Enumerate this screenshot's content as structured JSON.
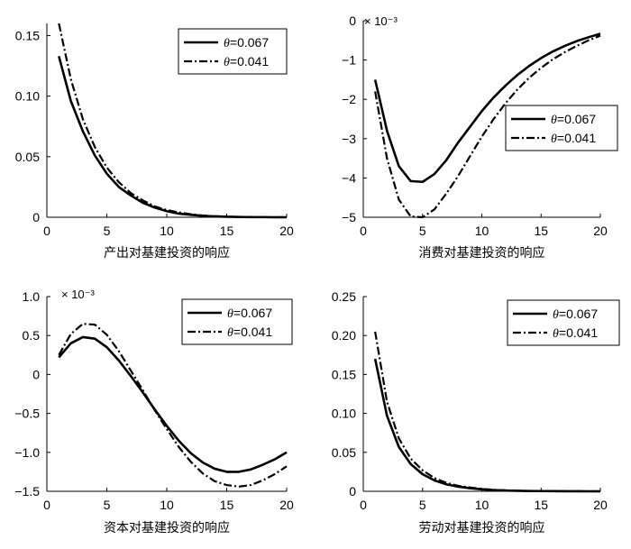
{
  "chart_data": [
    {
      "type": "line",
      "xlabel": "产出对基建投资的响应",
      "xlim": [
        0,
        20
      ],
      "ylim": [
        0,
        0.16
      ],
      "xticks": [
        "0",
        "5",
        "10",
        "15",
        "20"
      ],
      "yticks": [
        "0",
        "0.05",
        "0.10",
        "0.15"
      ],
      "ytick_values": [
        0,
        0.05,
        0.1,
        0.15
      ],
      "multiplier": "",
      "legend_position": "top-right",
      "series": [
        {
          "name": "θ=0.067",
          "style": "solid",
          "x": [
            1,
            2,
            3,
            4,
            5,
            6,
            7,
            8,
            9,
            10,
            11,
            12,
            13,
            14,
            15,
            16,
            17,
            18,
            19,
            20
          ],
          "y": [
            0.133,
            0.096,
            0.071,
            0.051,
            0.036,
            0.025,
            0.018,
            0.012,
            0.008,
            0.005,
            0.003,
            0.002,
            0.0012,
            0.0007,
            0.0004,
            0.0002,
            0.0001,
            0.0001,
            0.0,
            0.0
          ]
        },
        {
          "name": "θ=0.041",
          "style": "dashdot",
          "x": [
            1,
            2,
            3,
            4,
            5,
            6,
            7,
            8,
            9,
            10,
            11,
            12,
            13,
            14,
            15,
            16,
            17,
            18,
            19,
            20
          ],
          "y": [
            0.16,
            0.114,
            0.081,
            0.058,
            0.041,
            0.029,
            0.02,
            0.014,
            0.009,
            0.006,
            0.004,
            0.0025,
            0.0015,
            0.0009,
            0.0005,
            0.0003,
            0.0002,
            0.0001,
            0.0,
            0.0
          ]
        }
      ]
    },
    {
      "type": "line",
      "xlabel": "消费对基建投资的响应",
      "xlim": [
        0,
        20
      ],
      "ylim": [
        -5,
        0
      ],
      "xticks": [
        "0",
        "5",
        "10",
        "15",
        "20"
      ],
      "yticks": [
        "0",
        "−1",
        "−2",
        "−3",
        "−4",
        "−5"
      ],
      "ytick_values": [
        0,
        -1,
        -2,
        -3,
        -4,
        -5
      ],
      "multiplier": "× 10⁻³",
      "legend_position": "middle-right",
      "series": [
        {
          "name": "θ=0.067",
          "style": "solid",
          "x": [
            1,
            2,
            3,
            4,
            5,
            6,
            7,
            8,
            9,
            10,
            11,
            12,
            13,
            14,
            15,
            16,
            17,
            18,
            19,
            20
          ],
          "y": [
            -1.5,
            -2.8,
            -3.7,
            -4.08,
            -4.1,
            -3.9,
            -3.55,
            -3.1,
            -2.7,
            -2.3,
            -1.95,
            -1.65,
            -1.38,
            -1.15,
            -0.95,
            -0.78,
            -0.64,
            -0.52,
            -0.42,
            -0.33
          ]
        },
        {
          "name": "θ=0.041",
          "style": "dashdot",
          "x": [
            1,
            2,
            3,
            4,
            5,
            6,
            7,
            8,
            9,
            10,
            11,
            12,
            13,
            14,
            15,
            16,
            17,
            18,
            19,
            20
          ],
          "y": [
            -1.8,
            -3.5,
            -4.55,
            -4.98,
            -5.0,
            -4.8,
            -4.4,
            -3.95,
            -3.45,
            -2.95,
            -2.5,
            -2.1,
            -1.75,
            -1.45,
            -1.2,
            -0.98,
            -0.8,
            -0.64,
            -0.5,
            -0.38
          ]
        }
      ]
    },
    {
      "type": "line",
      "xlabel": "资本对基建投资的响应",
      "xlim": [
        0,
        20
      ],
      "ylim": [
        -1.5,
        1.0
      ],
      "xticks": [
        "0",
        "5",
        "10",
        "15",
        "20"
      ],
      "yticks": [
        "1.0",
        "0.5",
        "0",
        "−0.5",
        "−1.0",
        "−1.5"
      ],
      "ytick_values": [
        1.0,
        0.5,
        0,
        -0.5,
        -1.0,
        -1.5
      ],
      "multiplier": "× 10⁻³",
      "legend_position": "top-right",
      "series": [
        {
          "name": "θ=0.067",
          "style": "solid",
          "x": [
            1,
            2,
            3,
            4,
            5,
            6,
            7,
            8,
            9,
            10,
            11,
            12,
            13,
            14,
            15,
            16,
            17,
            18,
            19,
            20
          ],
          "y": [
            0.22,
            0.4,
            0.48,
            0.46,
            0.35,
            0.18,
            -0.02,
            -0.23,
            -0.45,
            -0.66,
            -0.85,
            -1.01,
            -1.13,
            -1.21,
            -1.25,
            -1.25,
            -1.22,
            -1.16,
            -1.09,
            -1.0
          ]
        },
        {
          "name": "θ=0.041",
          "style": "dashdot",
          "x": [
            1,
            2,
            3,
            4,
            5,
            6,
            7,
            8,
            9,
            10,
            11,
            12,
            13,
            14,
            15,
            16,
            17,
            18,
            19,
            20
          ],
          "y": [
            0.25,
            0.52,
            0.65,
            0.64,
            0.51,
            0.3,
            0.05,
            -0.2,
            -0.46,
            -0.7,
            -0.93,
            -1.12,
            -1.27,
            -1.37,
            -1.42,
            -1.44,
            -1.42,
            -1.36,
            -1.28,
            -1.18
          ]
        }
      ]
    },
    {
      "type": "line",
      "xlabel": "劳动对基建投资的响应",
      "xlim": [
        0,
        20
      ],
      "ylim": [
        0,
        0.25
      ],
      "xticks": [
        "0",
        "5",
        "10",
        "15",
        "20"
      ],
      "yticks": [
        "0.25",
        "0.20",
        "0.15",
        "0.10",
        "0.05",
        "0"
      ],
      "ytick_values": [
        0.25,
        0.2,
        0.15,
        0.1,
        0.05,
        0
      ],
      "multiplier": "",
      "legend_position": "top-right",
      "series": [
        {
          "name": "θ=0.067",
          "style": "solid",
          "x": [
            1,
            2,
            3,
            4,
            5,
            6,
            7,
            8,
            9,
            10,
            11,
            12,
            13,
            14,
            15,
            16,
            17,
            18,
            19,
            20
          ],
          "y": [
            0.17,
            0.097,
            0.057,
            0.035,
            0.022,
            0.014,
            0.009,
            0.006,
            0.004,
            0.0025,
            0.0016,
            0.001,
            0.0007,
            0.0004,
            0.0003,
            0.0002,
            0.0001,
            0.0001,
            0.0,
            0.0
          ]
        },
        {
          "name": "θ=0.041",
          "style": "dashdot",
          "x": [
            1,
            2,
            3,
            4,
            5,
            6,
            7,
            8,
            9,
            10,
            11,
            12,
            13,
            14,
            15,
            16,
            17,
            18,
            19,
            20
          ],
          "y": [
            0.205,
            0.115,
            0.068,
            0.042,
            0.027,
            0.017,
            0.011,
            0.007,
            0.005,
            0.003,
            0.002,
            0.0013,
            0.0008,
            0.0005,
            0.0003,
            0.0002,
            0.0001,
            0.0001,
            0.0,
            0.0
          ]
        }
      ]
    }
  ]
}
